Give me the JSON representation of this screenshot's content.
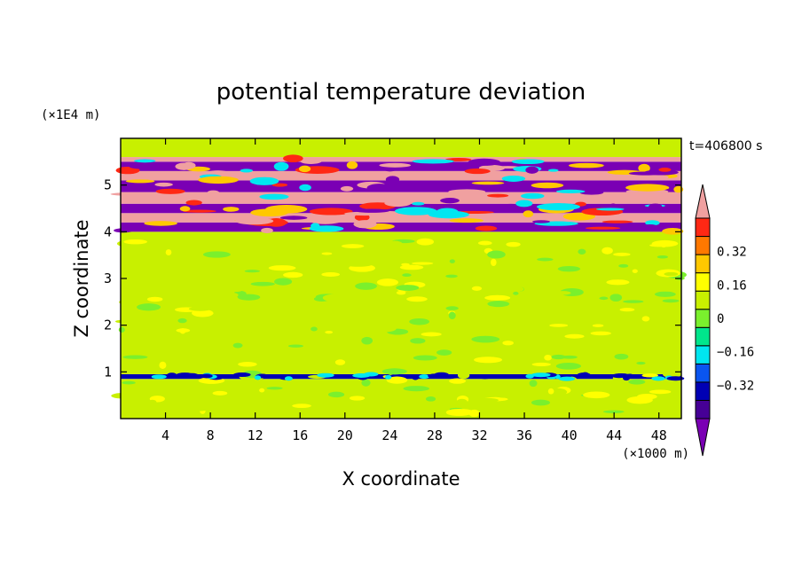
{
  "chart_data": {
    "type": "heatmap",
    "title": "potential temperature deviation",
    "xlabel": "X coordinate",
    "ylabel": "Z coordinate",
    "x_unit": "(×1000 m)",
    "y_unit": "(×1E4 m)",
    "time_label": "t=406800 s",
    "xlim": [
      0,
      50
    ],
    "ylim": [
      0,
      6
    ],
    "x_ticks": [
      4,
      8,
      12,
      16,
      20,
      24,
      28,
      32,
      36,
      40,
      44,
      48
    ],
    "y_ticks": [
      1,
      2,
      3,
      4,
      5
    ],
    "colorbar": {
      "levels": [
        -0.48,
        -0.4,
        -0.32,
        -0.24,
        -0.16,
        -0.08,
        0,
        0.08,
        0.16,
        0.24,
        0.32,
        0.4,
        0.48
      ],
      "labels": [
        "0.32",
        "0.16",
        "0",
        "−0.16",
        "−0.32"
      ],
      "label_values": [
        0.32,
        0.16,
        0,
        -0.16,
        -0.32
      ],
      "colors": [
        "#7a00b4",
        "#460096",
        "#0000b4",
        "#0a55f0",
        "#00e6f0",
        "#00e68c",
        "#7af02d",
        "#c8f000",
        "#ffff00",
        "#ffc800",
        "#ff7800",
        "#ff2814",
        "#f0a0a0"
      ],
      "extend": "both"
    },
    "bands": [
      {
        "z_min": 0.0,
        "z_max": 0.85,
        "value": 0.04
      },
      {
        "z_min": 0.85,
        "z_max": 0.95,
        "value": -0.35
      },
      {
        "z_min": 0.95,
        "z_max": 4.0,
        "value": 0.0
      },
      {
        "z_min": 4.0,
        "z_max": 4.2,
        "value": -0.5
      },
      {
        "z_min": 4.2,
        "z_max": 4.4,
        "value": 0.5
      },
      {
        "z_min": 4.4,
        "z_max": 4.6,
        "value": -0.5
      },
      {
        "z_min": 4.6,
        "z_max": 4.85,
        "value": 0.5
      },
      {
        "z_min": 4.85,
        "z_max": 5.1,
        "value": -0.5
      },
      {
        "z_min": 5.1,
        "z_max": 5.3,
        "value": 0.5
      },
      {
        "z_min": 5.3,
        "z_max": 5.5,
        "value": -0.5
      },
      {
        "z_min": 5.5,
        "z_max": 5.6,
        "value": 0.5
      },
      {
        "z_min": 5.6,
        "z_max": 6.0,
        "value": 0.04
      }
    ]
  }
}
